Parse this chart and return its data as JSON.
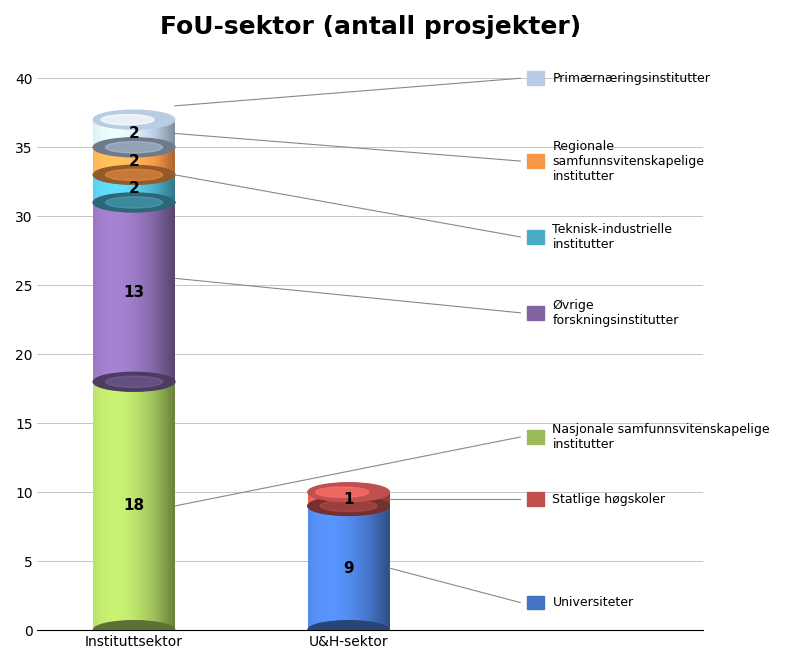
{
  "title": "FoU-sektor (antall prosjekter)",
  "categories": [
    "Instituttsektor",
    "U&H-sektor"
  ],
  "segments": [
    {
      "label": "Universiteter",
      "color": "#4472C4",
      "values": [
        0,
        9
      ]
    },
    {
      "label": "Statlige høgskoler",
      "color": "#C0504D",
      "values": [
        0,
        1
      ]
    },
    {
      "label": "Nasjonale samfunnsvitenskapelige\ninstitutter",
      "color": "#9BBB59",
      "values": [
        18,
        0
      ]
    },
    {
      "label": "Øvrige\nforskningsinstitutter",
      "color": "#8064A2",
      "values": [
        13,
        0
      ]
    },
    {
      "label": "Teknisk-industrielle\ninstitutter",
      "color": "#4BACC6",
      "values": [
        2,
        0
      ]
    },
    {
      "label": "Regionale\nsamfunnsvitenskapelige\ninstitutter",
      "color": "#F79646",
      "values": [
        2,
        0
      ]
    },
    {
      "label": "Primærnæringsinstitutter",
      "color": "#B8CCE4",
      "values": [
        2,
        0
      ]
    }
  ],
  "ylim": [
    0,
    42
  ],
  "yticks": [
    0,
    5,
    10,
    15,
    20,
    25,
    30,
    35,
    40
  ],
  "background_color": "#FFFFFF",
  "title_fontsize": 18,
  "tick_fontsize": 10,
  "legend_fontsize": 9,
  "bar_width": 0.38,
  "x_positions": [
    0.55,
    1.55
  ],
  "xlim": [
    0.1,
    3.2
  ]
}
